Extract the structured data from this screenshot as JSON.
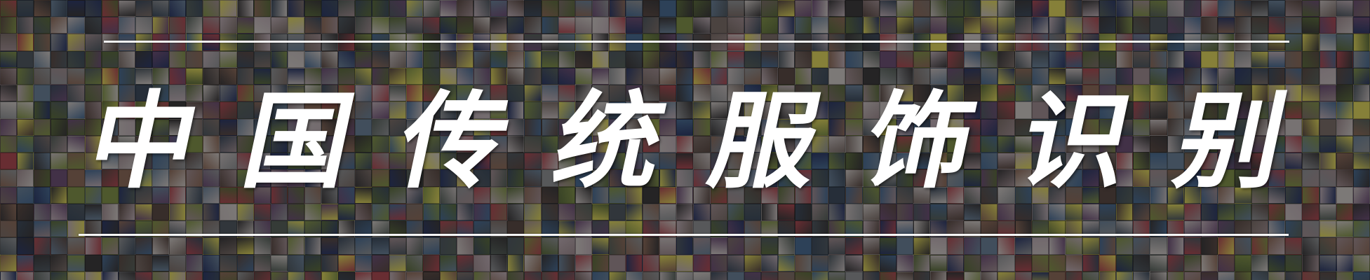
{
  "banner": {
    "title_chars": [
      "中",
      "国",
      "传",
      "统",
      "服",
      "饰",
      "识",
      "别"
    ]
  },
  "mosaic": {
    "palette": [
      "#5a4a45",
      "#3c3a3c",
      "#7a6d68",
      "#8d8f92",
      "#4f5860",
      "#6a7f95",
      "#9c8a8e",
      "#b8a9b0",
      "#3e4b5c",
      "#5b6b3e",
      "#7f8f4a",
      "#a84a52",
      "#c9c3c0",
      "#2f3b66",
      "#6b4f73",
      "#d8cf5c",
      "#4a6a8f",
      "#8a6a5a",
      "#c0b8b8",
      "#56605a"
    ]
  }
}
